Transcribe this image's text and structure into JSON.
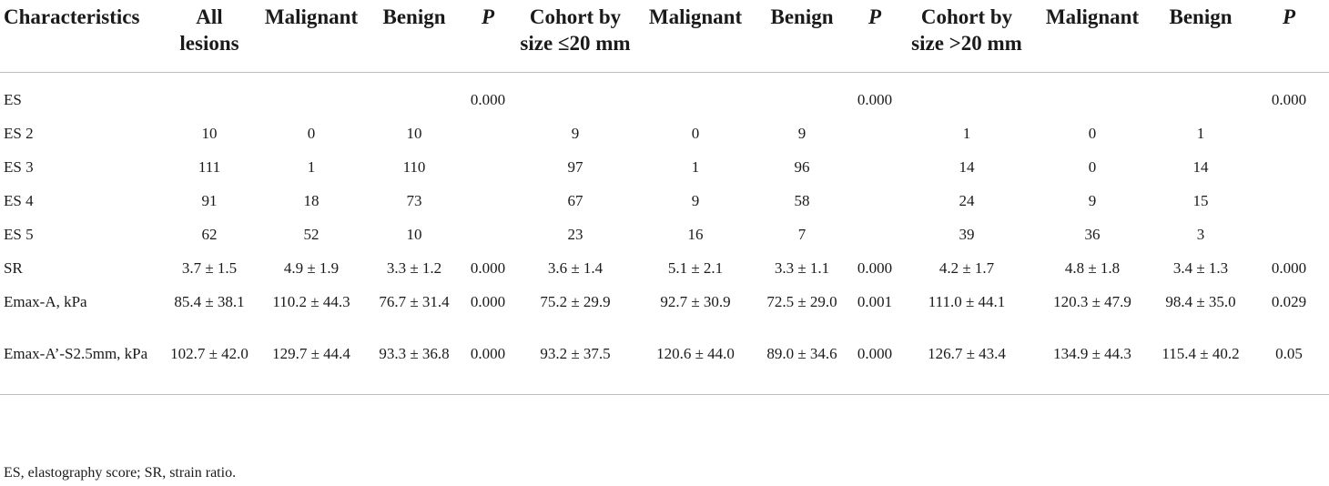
{
  "table": {
    "headers": [
      "Characteristics",
      "All lesions",
      "Malignant",
      "Benign",
      "P",
      "Cohort by size ≤20 mm",
      "Malignant",
      "Benign",
      "P",
      "Cohort by size >20 mm",
      "Malignant",
      "Benign",
      "P"
    ],
    "rows": [
      [
        "ES",
        "",
        "",
        "",
        "0.000",
        "",
        "",
        "",
        "0.000",
        "",
        "",
        "",
        "0.000"
      ],
      [
        "ES 2",
        "10",
        "0",
        "10",
        "",
        "9",
        "0",
        "9",
        "",
        "1",
        "0",
        "1",
        ""
      ],
      [
        "ES 3",
        "111",
        "1",
        "110",
        "",
        "97",
        "1",
        "96",
        "",
        "14",
        "0",
        "14",
        ""
      ],
      [
        "ES 4",
        "91",
        "18",
        "73",
        "",
        "67",
        "9",
        "58",
        "",
        "24",
        "9",
        "15",
        ""
      ],
      [
        "ES 5",
        "62",
        "52",
        "10",
        "",
        "23",
        "16",
        "7",
        "",
        "39",
        "36",
        "3",
        ""
      ],
      [
        "SR",
        "3.7 ± 1.5",
        "4.9 ± 1.9",
        "3.3 ± 1.2",
        "0.000",
        "3.6 ± 1.4",
        "5.1 ± 2.1",
        "3.3 ± 1.1",
        "0.000",
        "4.2 ± 1.7",
        "4.8 ± 1.8",
        "3.4 ± 1.3",
        "0.000"
      ],
      [
        "Emax-A, kPa",
        "85.4 ± 38.1",
        "110.2 ± 44.3",
        "76.7 ± 31.4",
        "0.000",
        "75.2 ± 29.9",
        "92.7 ± 30.9",
        "72.5 ± 29.0",
        "0.001",
        "111.0 ± 44.1",
        "120.3 ± 47.9",
        "98.4 ± 35.0",
        "0.029"
      ],
      [
        "Emax-A’-S2.5mm, kPa",
        "102.7 ± 42.0",
        "129.7 ± 44.4",
        "93.3 ± 36.8",
        "0.000",
        "93.2 ± 37.5",
        "120.6 ± 44.0",
        "89.0 ± 34.6",
        "0.000",
        "126.7 ± 43.4",
        "134.9 ± 44.3",
        "115.4 ± 40.2",
        "0.05"
      ]
    ]
  },
  "footnote": "ES, elastography score; SR, strain ratio."
}
